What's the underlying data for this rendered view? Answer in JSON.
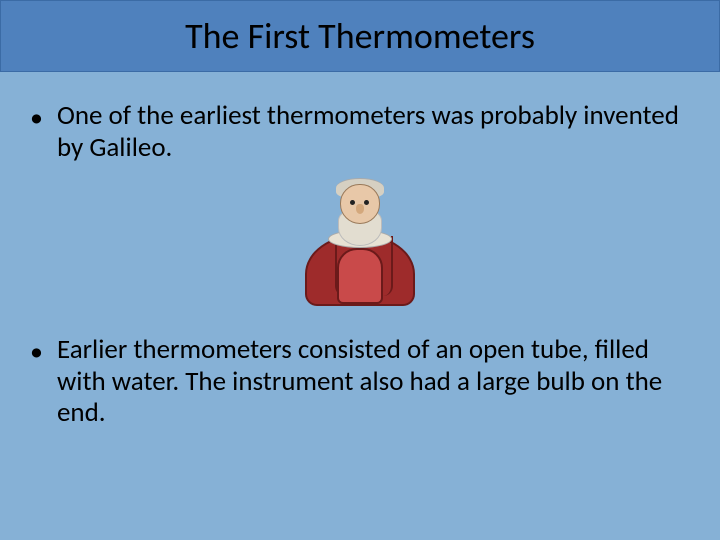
{
  "slide": {
    "title": "The First Thermometers",
    "bullets": [
      "One of the earliest thermometers was probably invented by Galileo.",
      "Earlier thermometers consisted of an open tube, filled with water.  The instrument also had a large bulb on the end."
    ],
    "illustration": "galileo-portrait"
  },
  "style": {
    "background_color": "#86b1d6",
    "title_bar_color": "#4f81bd",
    "text_color": "#000000",
    "title_fontsize": 36,
    "body_fontsize": 27,
    "robe_color": "#9e2b2b",
    "robe_inner": "#c94a4a",
    "skin_color": "#e8c8a8",
    "beard_color": "#e2ddd0"
  }
}
